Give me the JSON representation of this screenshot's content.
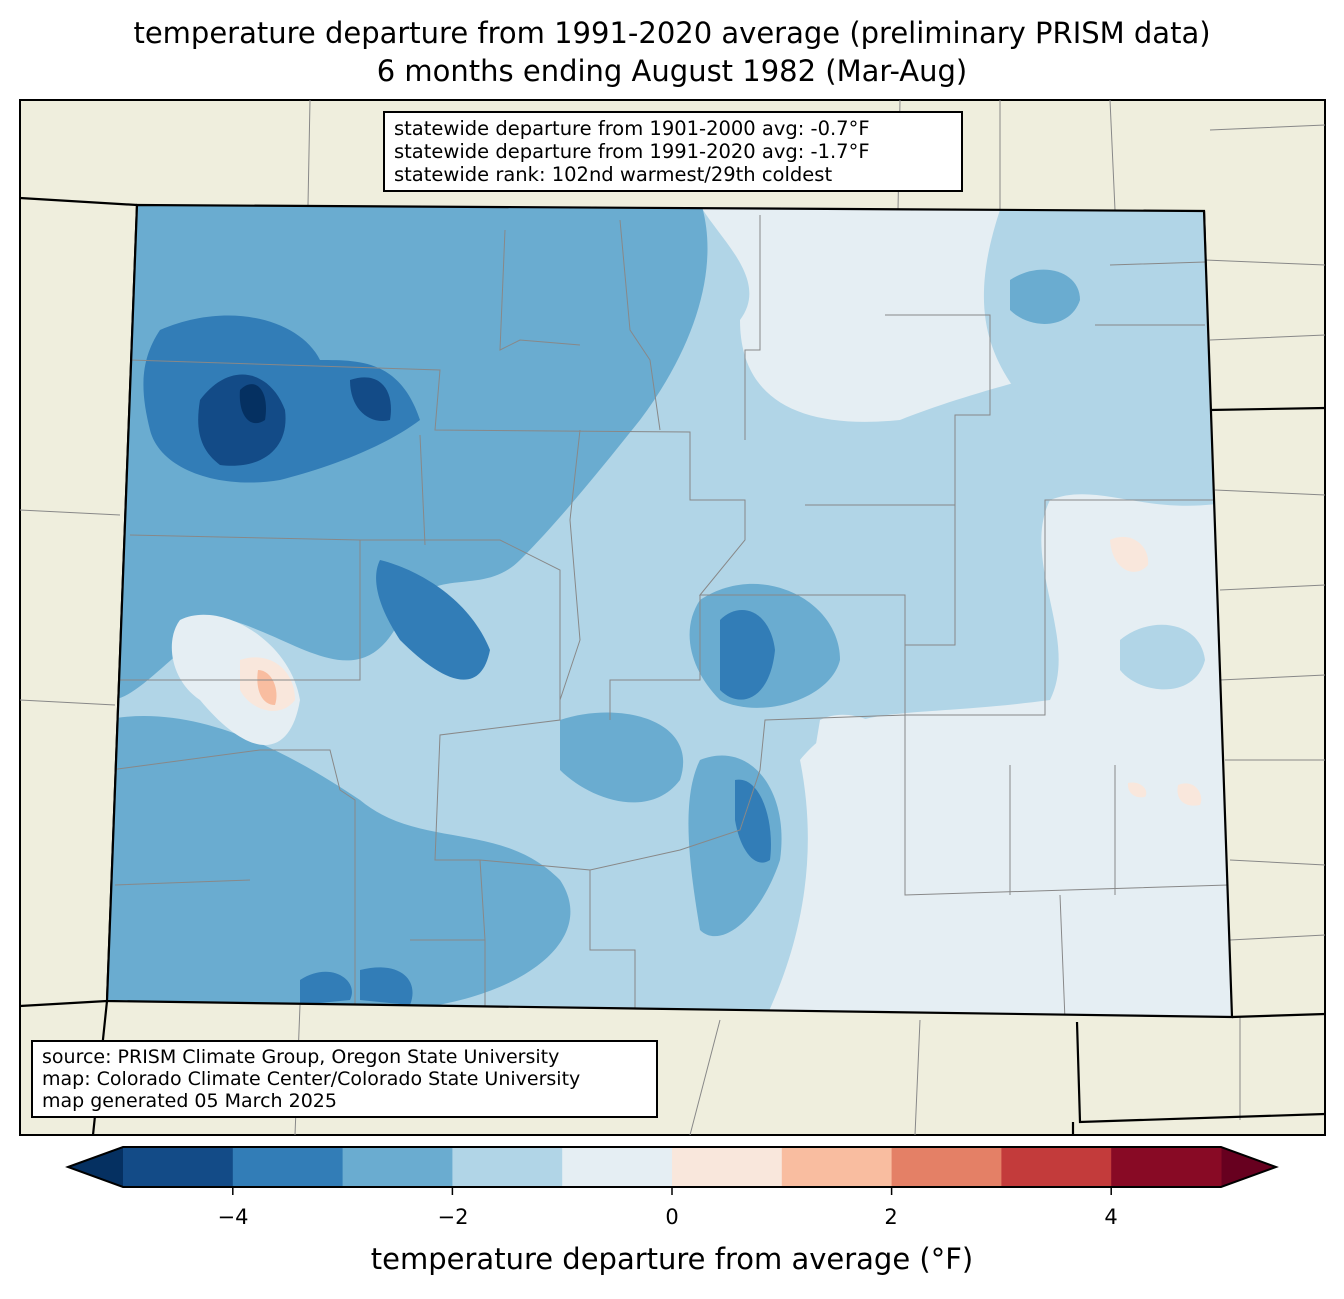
{
  "title": {
    "line1": "temperature departure from 1991-2020 average (preliminary PRISM data)",
    "line2": "6 months ending August 1982 (Mar-Aug)"
  },
  "stats_box": {
    "line1": "statewide departure from 1901-2000 avg: -0.7°F",
    "line2": "statewide departure from 1991-2020 avg: -1.7°F",
    "line3": "statewide rank: 102nd warmest/29th coldest"
  },
  "source_box": {
    "line1": "source: PRISM Climate Group, Oregon State University",
    "line2": "map: Colorado Climate Center/Colorado State University",
    "line3": "map generated 05 March 2025"
  },
  "colorbar": {
    "label": "temperature departure from average (°F)",
    "ticks": [
      "−4",
      "−2",
      "0",
      "2",
      "4"
    ],
    "bounds": [
      -5,
      -4,
      -3,
      -2,
      -1,
      0,
      1,
      2,
      3,
      4,
      5
    ],
    "colors": [
      "#134b87",
      "#327db7",
      "#6aacd0",
      "#b1d5e7",
      "#e5eef3",
      "#f9e7dc",
      "#f9bda0",
      "#e48066",
      "#c33b3b",
      "#880a25"
    ],
    "extend_low": "#053061",
    "extend_high": "#67001f"
  },
  "map_colors": {
    "land": "#efeedd",
    "dominant": "#b1d5e7"
  }
}
